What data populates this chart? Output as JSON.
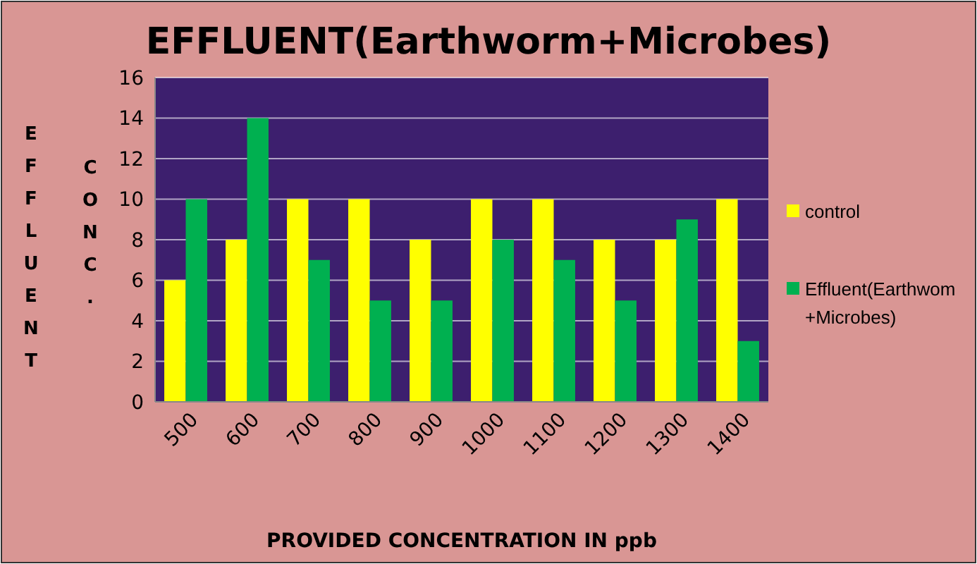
{
  "chart_data": {
    "type": "bar",
    "title": "EFFLUENT(Earthworm+Microbes)",
    "xlabel": "PROVIDED CONCENTRATION IN ppb",
    "ylabel": "EFFLUENT CONC.",
    "categories": [
      "500",
      "600",
      "700",
      "800",
      "900",
      "1000",
      "1100",
      "1200",
      "1300",
      "1400"
    ],
    "series": [
      {
        "name": "control",
        "color": "#ffff00",
        "values": [
          6,
          8,
          10,
          10,
          8,
          10,
          10,
          8,
          8,
          10
        ]
      },
      {
        "name": "Effluent(Earthwom+Microbes)",
        "color": "#00b050",
        "values": [
          10,
          14,
          7,
          5,
          5,
          8,
          7,
          5,
          9,
          3
        ]
      }
    ],
    "ylim": [
      0,
      16
    ],
    "yticks": [
      0,
      2,
      4,
      6,
      8,
      10,
      12,
      14,
      16
    ],
    "grid": "y",
    "legend": "right"
  }
}
